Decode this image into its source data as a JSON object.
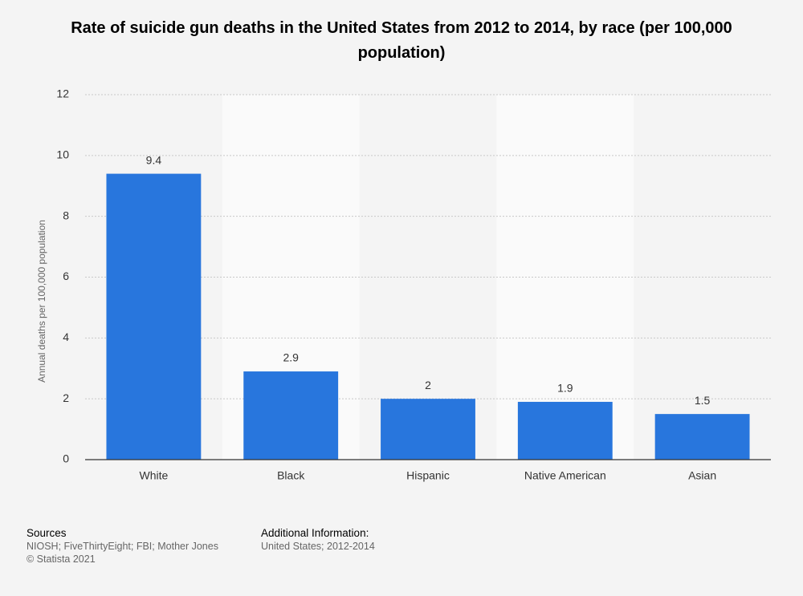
{
  "chart_data": {
    "type": "bar",
    "title": "Rate of suicide gun deaths in the United States from 2012 to 2014, by race (per 100,000 population)",
    "y_label": "Annual deaths per 100,000 population",
    "categories": [
      "White",
      "Black",
      "Hispanic",
      "Native American",
      "Asian"
    ],
    "values": [
      9.4,
      2.9,
      2,
      1.9,
      1.5
    ],
    "color": "#2876dd",
    "ylim": [
      0,
      12
    ],
    "yticks": [
      0,
      2,
      4,
      6,
      8,
      10,
      12
    ],
    "grid": true
  },
  "footer": {
    "sources_heading": "Sources",
    "sources": "NIOSH; FiveThirtyEight; FBI; Mother Jones",
    "copyright": "© Statista 2021",
    "info_heading": "Additional Information:",
    "info": "United States; 2012-2014"
  }
}
